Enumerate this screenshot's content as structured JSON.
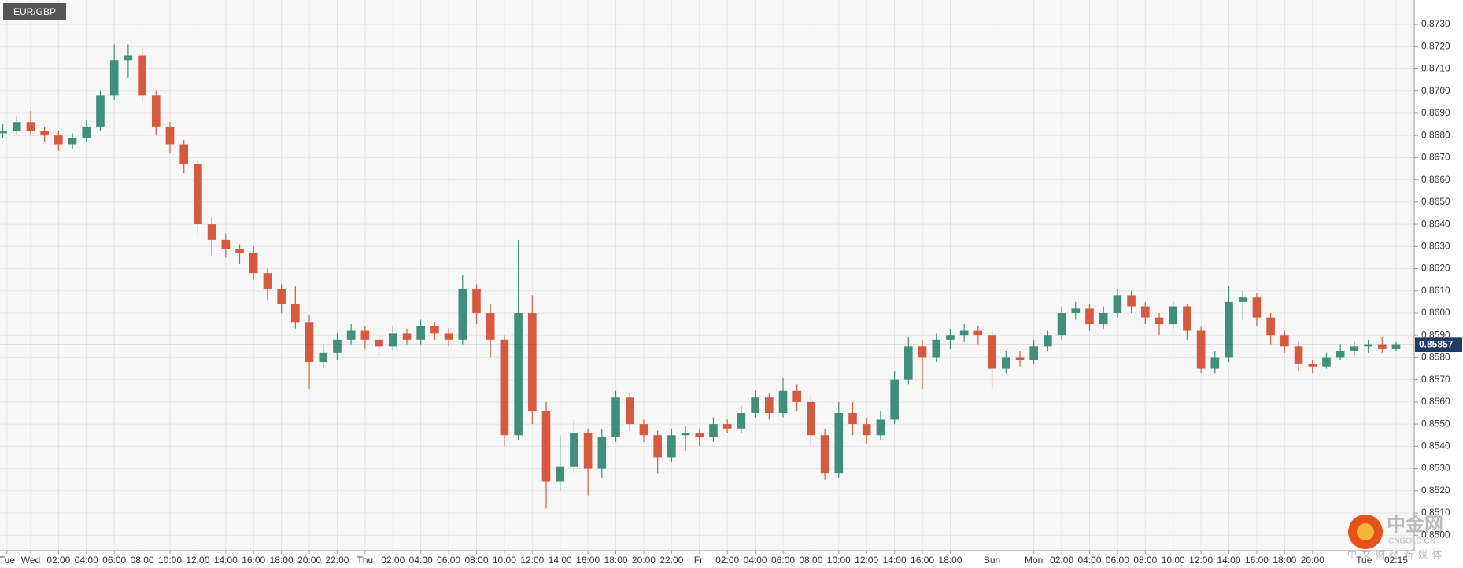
{
  "chart_data": {
    "type": "candlestick",
    "title": "EUR/GBP",
    "x": [
      -2,
      -1,
      0,
      1,
      2,
      3,
      4,
      5,
      6,
      7,
      8,
      9,
      10,
      11,
      12,
      13,
      14,
      15,
      16,
      17,
      18,
      19,
      20,
      21,
      22,
      23,
      24,
      25,
      26,
      27,
      28,
      29,
      30,
      31,
      32,
      33,
      34,
      35,
      36,
      37,
      38,
      39,
      40,
      41,
      42,
      43,
      44,
      45,
      46,
      47,
      48,
      49,
      50,
      51,
      52,
      53,
      54,
      55,
      56,
      57,
      58,
      59,
      60,
      61,
      62,
      63,
      64,
      65,
      66,
      67,
      68,
      69,
      70,
      71,
      72,
      73,
      74,
      75,
      76,
      77,
      78,
      79,
      80,
      81,
      82,
      83,
      84,
      85,
      86,
      87,
      88,
      89,
      90,
      91,
      92,
      93,
      94,
      95,
      96,
      97,
      98
    ],
    "open": [
      0.8681,
      0.8682,
      0.8686,
      0.8682,
      0.868,
      0.8676,
      0.8679,
      0.8684,
      0.8698,
      0.8714,
      0.8716,
      0.8698,
      0.8684,
      0.8676,
      0.8667,
      0.864,
      0.8633,
      0.8629,
      0.8627,
      0.8618,
      0.8611,
      0.8604,
      0.8596,
      0.8578,
      0.8582,
      0.8588,
      0.8592,
      0.8588,
      0.8585,
      0.8591,
      0.8588,
      0.8594,
      0.8591,
      0.8588,
      0.8611,
      0.86,
      0.8588,
      0.8545,
      0.86,
      0.8556,
      0.8524,
      0.8531,
      0.8546,
      0.853,
      0.8544,
      0.8562,
      0.855,
      0.8545,
      0.8535,
      0.8545,
      0.8546,
      0.8544,
      0.855,
      0.8548,
      0.8555,
      0.8562,
      0.8555,
      0.8565,
      0.856,
      0.8545,
      0.8528,
      0.8555,
      0.855,
      0.8545,
      0.8552,
      0.857,
      0.8585,
      0.858,
      0.8588,
      0.859,
      0.8592,
      0.859,
      0.8575,
      0.858,
      0.8579,
      0.8585,
      0.859,
      0.86,
      0.8602,
      0.8595,
      0.86,
      0.8608,
      0.8603,
      0.8598,
      0.8595,
      0.8603,
      0.8592,
      0.8575,
      0.858,
      0.8605,
      0.8607,
      0.8598,
      0.859,
      0.8585,
      0.8577,
      0.8576,
      0.858,
      0.8583,
      0.8585,
      0.8586,
      0.8584
    ],
    "high": [
      0.8685,
      0.8689,
      0.8691,
      0.8684,
      0.8682,
      0.8681,
      0.8687,
      0.87,
      0.8721,
      0.8721,
      0.8719,
      0.87,
      0.8686,
      0.8678,
      0.8669,
      0.8643,
      0.8636,
      0.8631,
      0.863,
      0.862,
      0.8613,
      0.8612,
      0.8599,
      0.8586,
      0.8591,
      0.8595,
      0.8594,
      0.859,
      0.8594,
      0.8593,
      0.8597,
      0.8596,
      0.8593,
      0.8617,
      0.8613,
      0.8604,
      0.859,
      0.8633,
      0.8608,
      0.856,
      0.8545,
      0.8552,
      0.8548,
      0.8548,
      0.8565,
      0.8564,
      0.8552,
      0.8547,
      0.8548,
      0.8549,
      0.8548,
      0.8553,
      0.8552,
      0.8558,
      0.8565,
      0.8564,
      0.8571,
      0.8568,
      0.8562,
      0.8548,
      0.856,
      0.856,
      0.8553,
      0.8556,
      0.8574,
      0.8589,
      0.8588,
      0.8591,
      0.8593,
      0.8595,
      0.8594,
      0.8592,
      0.8583,
      0.8583,
      0.8588,
      0.8592,
      0.8603,
      0.8605,
      0.8604,
      0.8603,
      0.8611,
      0.861,
      0.8605,
      0.86,
      0.8605,
      0.8604,
      0.8594,
      0.8583,
      0.8612,
      0.861,
      0.8609,
      0.86,
      0.8592,
      0.8587,
      0.8579,
      0.8582,
      0.8586,
      0.8587,
      0.8588,
      0.8589,
      0.8587
    ],
    "low": [
      0.8679,
      0.868,
      0.868,
      0.8677,
      0.8673,
      0.8674,
      0.8677,
      0.8682,
      0.8696,
      0.8706,
      0.8695,
      0.868,
      0.8672,
      0.8663,
      0.8636,
      0.8626,
      0.8625,
      0.8622,
      0.8615,
      0.8606,
      0.86,
      0.8593,
      0.8566,
      0.8575,
      0.8579,
      0.8586,
      0.8584,
      0.858,
      0.8583,
      0.8586,
      0.8586,
      0.8588,
      0.8585,
      0.8586,
      0.8595,
      0.858,
      0.854,
      0.8543,
      0.855,
      0.8512,
      0.852,
      0.8528,
      0.8518,
      0.8526,
      0.8542,
      0.8547,
      0.8542,
      0.8528,
      0.8533,
      0.8538,
      0.854,
      0.8542,
      0.8546,
      0.8546,
      0.8553,
      0.8552,
      0.8553,
      0.8556,
      0.854,
      0.8525,
      0.8526,
      0.8545,
      0.8541,
      0.8543,
      0.855,
      0.8568,
      0.8566,
      0.8578,
      0.8584,
      0.8587,
      0.8586,
      0.8566,
      0.8573,
      0.8576,
      0.8577,
      0.8583,
      0.8588,
      0.8597,
      0.8592,
      0.8593,
      0.8598,
      0.86,
      0.8595,
      0.859,
      0.8593,
      0.8588,
      0.8573,
      0.8573,
      0.8578,
      0.8597,
      0.8594,
      0.8586,
      0.8582,
      0.8574,
      0.8573,
      0.8575,
      0.8579,
      0.8581,
      0.8582,
      0.8582,
      0.8583
    ],
    "close": [
      0.8682,
      0.8686,
      0.8682,
      0.868,
      0.8676,
      0.8679,
      0.8684,
      0.8698,
      0.8714,
      0.8716,
      0.8698,
      0.8684,
      0.8676,
      0.8667,
      0.864,
      0.8633,
      0.8629,
      0.8627,
      0.8618,
      0.8611,
      0.8604,
      0.8596,
      0.8578,
      0.8582,
      0.8588,
      0.8592,
      0.8588,
      0.8585,
      0.8591,
      0.8588,
      0.8594,
      0.8591,
      0.8588,
      0.8611,
      0.86,
      0.8588,
      0.8545,
      0.86,
      0.8556,
      0.8524,
      0.8531,
      0.8546,
      0.853,
      0.8544,
      0.8562,
      0.855,
      0.8545,
      0.8535,
      0.8545,
      0.8546,
      0.8544,
      0.855,
      0.8548,
      0.8555,
      0.8562,
      0.8555,
      0.8565,
      0.856,
      0.8545,
      0.8528,
      0.8555,
      0.855,
      0.8545,
      0.8552,
      0.857,
      0.8585,
      0.858,
      0.8588,
      0.859,
      0.8592,
      0.859,
      0.8575,
      0.858,
      0.8579,
      0.8585,
      0.859,
      0.86,
      0.8602,
      0.8595,
      0.86,
      0.8608,
      0.8603,
      0.8598,
      0.8595,
      0.8603,
      0.8592,
      0.8575,
      0.858,
      0.8605,
      0.8607,
      0.8598,
      0.859,
      0.8585,
      0.8577,
      0.8576,
      0.858,
      0.8583,
      0.8585,
      0.8586,
      0.8584,
      0.8586
    ],
    "up_color": "#3f8f7a",
    "down_color": "#d65a3f",
    "grid": true,
    "xlim": [
      -2.2,
      99.3
    ],
    "xticks": [
      {
        "value": -1.7,
        "label": "Tue"
      },
      {
        "value": 0,
        "label": "Wed"
      },
      {
        "value": 2,
        "label": "02:00"
      },
      {
        "value": 4,
        "label": "04:00"
      },
      {
        "value": 6,
        "label": "06:00"
      },
      {
        "value": 8,
        "label": "08:00"
      },
      {
        "value": 10,
        "label": "10:00"
      },
      {
        "value": 12,
        "label": "12:00"
      },
      {
        "value": 14,
        "label": "14:00"
      },
      {
        "value": 16,
        "label": "16:00"
      },
      {
        "value": 18,
        "label": "18:00"
      },
      {
        "value": 20,
        "label": "20:00"
      },
      {
        "value": 22,
        "label": "22:00"
      },
      {
        "value": 24,
        "label": "Thu"
      },
      {
        "value": 26,
        "label": "02:00"
      },
      {
        "value": 28,
        "label": "04:00"
      },
      {
        "value": 30,
        "label": "06:00"
      },
      {
        "value": 32,
        "label": "08:00"
      },
      {
        "value": 34,
        "label": "10:00"
      },
      {
        "value": 36,
        "label": "12:00"
      },
      {
        "value": 38,
        "label": "14:00"
      },
      {
        "value": 40,
        "label": "16:00"
      },
      {
        "value": 42,
        "label": "18:00"
      },
      {
        "value": 44,
        "label": "20:00"
      },
      {
        "value": 46,
        "label": "22:00"
      },
      {
        "value": 48,
        "label": "Fri"
      },
      {
        "value": 50,
        "label": "02:00"
      },
      {
        "value": 52,
        "label": "04:00"
      },
      {
        "value": 54,
        "label": "06:00"
      },
      {
        "value": 56,
        "label": "08:00"
      },
      {
        "value": 58,
        "label": "10:00"
      },
      {
        "value": 60,
        "label": "12:00"
      },
      {
        "value": 62,
        "label": "14:00"
      },
      {
        "value": 64,
        "label": "16:00"
      },
      {
        "value": 66,
        "label": "18:00"
      },
      {
        "value": 69,
        "label": "Sun"
      },
      {
        "value": 72,
        "label": "Mon"
      },
      {
        "value": 74,
        "label": "02:00"
      },
      {
        "value": 76,
        "label": "04:00"
      },
      {
        "value": 78,
        "label": "06:00"
      },
      {
        "value": 80,
        "label": "08:00"
      },
      {
        "value": 82,
        "label": "10:00"
      },
      {
        "value": 84,
        "label": "12:00"
      },
      {
        "value": 86,
        "label": "14:00"
      },
      {
        "value": 88,
        "label": "16:00"
      },
      {
        "value": 90,
        "label": "18:00"
      },
      {
        "value": 92,
        "label": "20:00"
      },
      {
        "value": 95.7,
        "label": "Tue"
      },
      {
        "value": 98,
        "label": "02:15"
      }
    ],
    "ylim": [
      0.8493,
      0.8741
    ],
    "yticks": [
      {
        "value": 0.85,
        "label": "0.8500"
      },
      {
        "value": 0.851,
        "label": "0.8510"
      },
      {
        "value": 0.852,
        "label": "0.8520"
      },
      {
        "value": 0.853,
        "label": "0.8530"
      },
      {
        "value": 0.854,
        "label": "0.8540"
      },
      {
        "value": 0.855,
        "label": "0.8550"
      },
      {
        "value": 0.856,
        "label": "0.8560"
      },
      {
        "value": 0.857,
        "label": "0.8570"
      },
      {
        "value": 0.858,
        "label": "0.8580"
      },
      {
        "value": 0.859,
        "label": "0.8590"
      },
      {
        "value": 0.86,
        "label": "0.8600"
      },
      {
        "value": 0.861,
        "label": "0.8610"
      },
      {
        "value": 0.862,
        "label": "0.8620"
      },
      {
        "value": 0.863,
        "label": "0.8630"
      },
      {
        "value": 0.864,
        "label": "0.8640"
      },
      {
        "value": 0.865,
        "label": "0.8650"
      },
      {
        "value": 0.866,
        "label": "0.8660"
      },
      {
        "value": 0.867,
        "label": "0.8670"
      },
      {
        "value": 0.868,
        "label": "0.8680"
      },
      {
        "value": 0.869,
        "label": "0.8690"
      },
      {
        "value": 0.87,
        "label": "0.8700"
      },
      {
        "value": 0.871,
        "label": "0.8710"
      },
      {
        "value": 0.872,
        "label": "0.8720"
      },
      {
        "value": 0.873,
        "label": "0.8730"
      }
    ],
    "current_price": 0.85857,
    "current_color": "#1f3a64"
  },
  "watermark": {
    "name": "中金网",
    "site": "CNGOLD.CN",
    "tagline": "中文财经新媒体"
  }
}
